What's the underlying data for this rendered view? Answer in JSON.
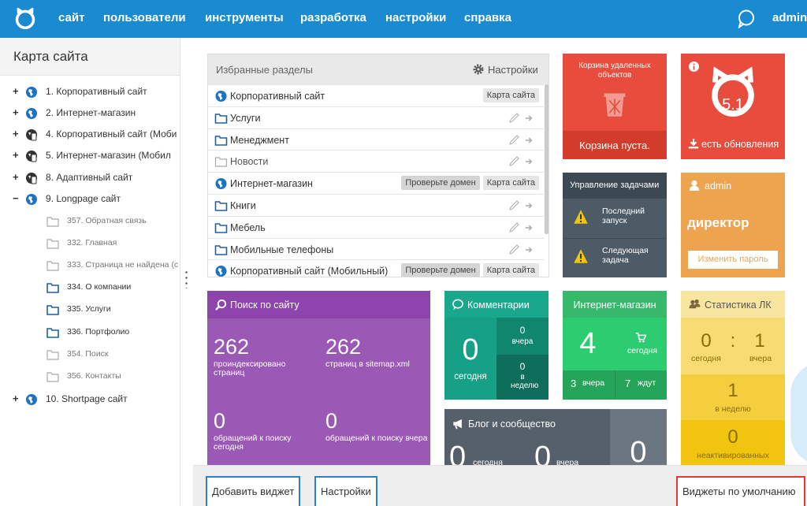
{
  "navbar": {
    "menu": [
      "сайт",
      "пользователи",
      "инструменты",
      "разработка",
      "настройки",
      "справка"
    ],
    "user": "admin"
  },
  "sidebar": {
    "title": "Карта сайта",
    "tree": [
      {
        "toggle": "+",
        "label": "1. Корпоративный сайт",
        "level": 0,
        "icon": "globe"
      },
      {
        "toggle": "+",
        "label": "2. Интернет-магазин",
        "level": 0,
        "icon": "globe"
      },
      {
        "toggle": "+",
        "label": "4. Корпоративный сайт (Моби",
        "level": 0,
        "icon": "mobile"
      },
      {
        "toggle": "+",
        "label": "5. Интернет-магазин (Мобил",
        "level": 0,
        "icon": "mobile"
      },
      {
        "toggle": "+",
        "label": "8. Адаптивный сайт",
        "level": 0,
        "icon": "mobile"
      },
      {
        "toggle": "−",
        "label": "9. Longpage сайт",
        "level": 0,
        "icon": "globe"
      },
      {
        "label": "357. Обратная связь",
        "level": 1,
        "icon": "folder-gray"
      },
      {
        "label": "332. Главная",
        "level": 1,
        "icon": "folder-gray"
      },
      {
        "label": "333. Страница не найдена (с",
        "level": 1,
        "icon": "folder-gray"
      },
      {
        "label": "334. О компании",
        "level": 1,
        "icon": "folder"
      },
      {
        "label": "335. Услуги",
        "level": 1,
        "icon": "folder"
      },
      {
        "label": "336. Портфолио",
        "level": 1,
        "icon": "folder"
      },
      {
        "label": "354. Поиск",
        "level": 1,
        "icon": "folder-gray"
      },
      {
        "label": "356. Контакты",
        "level": 1,
        "icon": "folder-gray"
      },
      {
        "toggle": "+",
        "label": "10. Shortpage сайт",
        "level": 0,
        "icon": "globe"
      }
    ]
  },
  "favorites": {
    "title": "Избранные разделы",
    "settings": "Настройки",
    "rows": [
      {
        "label": "Корпоративный сайт",
        "icon": "globe",
        "buttons": [
          "Карта сайта"
        ]
      },
      {
        "label": "Услуги",
        "icon": "folder",
        "buttons": []
      },
      {
        "label": "Менеджмент",
        "icon": "folder",
        "buttons": []
      },
      {
        "label": "Новости",
        "icon": "folder-gray",
        "buttons": []
      },
      {
        "label": "Интернет-магазин",
        "icon": "globe",
        "buttons": [
          "Проверьте домен",
          "Карта сайта"
        ]
      },
      {
        "label": "Книги",
        "icon": "folder",
        "buttons": []
      },
      {
        "label": "Мебель",
        "icon": "folder",
        "buttons": []
      },
      {
        "label": "Мобильные телефоны",
        "icon": "folder",
        "buttons": []
      },
      {
        "label": "Корпоративный сайт (Мобильный)",
        "icon": "globe",
        "buttons": [
          "Проверьте домен",
          "Карта сайта"
        ]
      }
    ]
  },
  "trash": {
    "title": "Корзина удаленных объектов",
    "status": "Корзина пуста."
  },
  "update": {
    "version": "5.1",
    "status": "есть обновления"
  },
  "tasks": {
    "title": "Управление задачами",
    "items": [
      "Последний запуск",
      "Следующая задача"
    ]
  },
  "admin": {
    "user": "admin",
    "role": "директор",
    "button": "Изменить пароль"
  },
  "search": {
    "title": "Поиск по сайту",
    "stats": [
      {
        "value": 262,
        "label": "проиндексировано страниц"
      },
      {
        "value": 262,
        "label": "страниц в sitemap.xml"
      },
      {
        "value": 0,
        "label": "обращений к поиску сегодня"
      },
      {
        "value": 0,
        "label": "обращений к поиску вчера"
      }
    ]
  },
  "comments": {
    "title": "Комментарии",
    "today": {
      "value": 0,
      "label": "сегодня"
    },
    "yesterday": {
      "value": 0,
      "label": "вчера"
    },
    "week": {
      "value": 0,
      "label": "в неделю"
    }
  },
  "shop": {
    "title": "Интернет-магазин",
    "today": {
      "value": 4,
      "label": "сегодня"
    },
    "yesterday": {
      "value": 3,
      "label": "вчера"
    },
    "waiting": {
      "value": 7,
      "label": "ждут"
    }
  },
  "stats": {
    "title": "Статистика ЛК",
    "today": {
      "value": 0,
      "label": "сегодня"
    },
    "separator": ":",
    "yesterday": {
      "value": 1,
      "label": "вчера"
    },
    "week": {
      "value": 1,
      "label": "в неделю"
    },
    "inactive": {
      "value": 0,
      "label": "неактивированных"
    }
  },
  "blog": {
    "title": "Блог и сообщество",
    "today": {
      "value": 0,
      "label": "сегодня"
    },
    "yesterday": {
      "value": 0,
      "label": "вчера"
    },
    "extra": {
      "value": 0
    }
  },
  "footer": {
    "add": "Добавить виджет",
    "settings": "Настройки",
    "defaults": "Виджеты по умолчанию"
  }
}
